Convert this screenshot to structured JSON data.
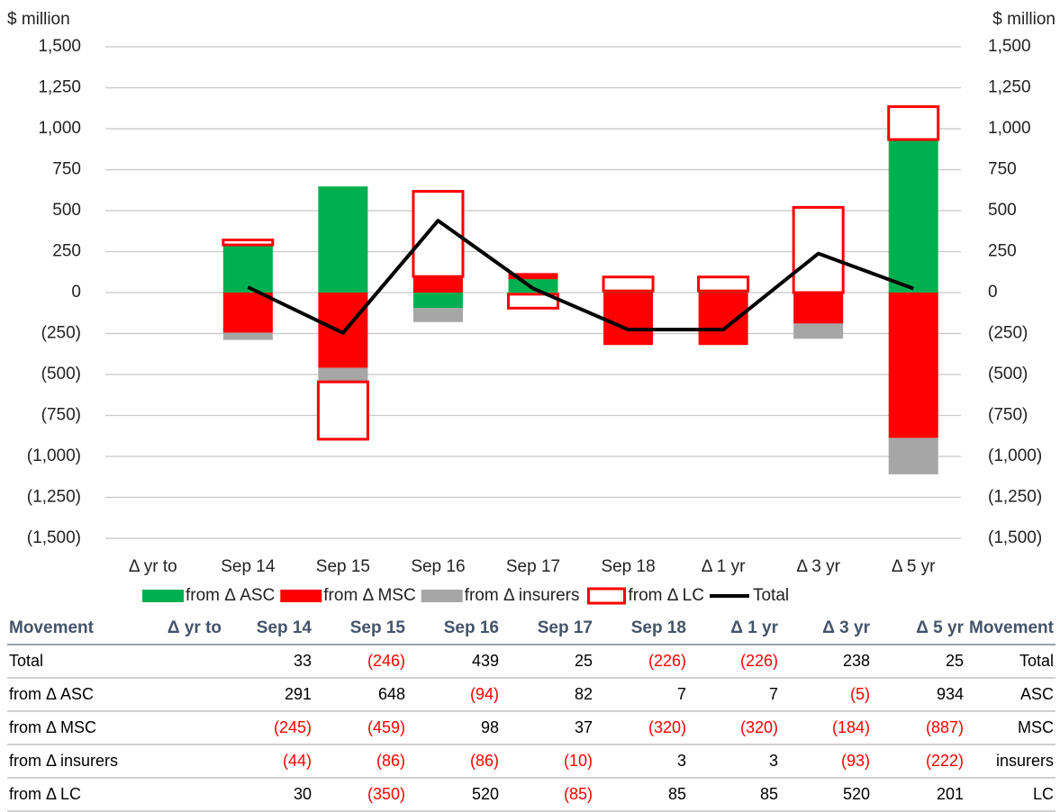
{
  "chart_data": {
    "type": "bar",
    "y_label": "$ million",
    "categories": [
      "Δ yr to",
      "Sep 14",
      "Sep 15",
      "Sep 16",
      "Sep 17",
      "Sep 18",
      "Δ 1 yr",
      "Δ 3 yr",
      "Δ 5 yr"
    ],
    "series": [
      {
        "name": "from Δ ASC",
        "color": "#00b050",
        "style": "fill",
        "values": [
          null,
          291,
          648,
          -94,
          82,
          7,
          7,
          -5,
          934
        ]
      },
      {
        "name": "from Δ MSC",
        "color": "#ff0000",
        "style": "fill",
        "values": [
          null,
          -245,
          -459,
          98,
          37,
          -320,
          -320,
          -184,
          -887
        ]
      },
      {
        "name": "from Δ insurers",
        "color": "#a6a6a6",
        "style": "fill",
        "values": [
          null,
          -44,
          -86,
          -86,
          -10,
          3,
          3,
          -93,
          -222
        ]
      },
      {
        "name": "from Δ LC",
        "color": "#ff0000",
        "style": "outline",
        "values": [
          null,
          30,
          -350,
          520,
          -85,
          85,
          85,
          520,
          201
        ]
      },
      {
        "name": "Total",
        "color": "#000000",
        "style": "line",
        "values": [
          null,
          33,
          -246,
          439,
          25,
          -226,
          -226,
          238,
          25
        ]
      }
    ],
    "ylim": [
      -1500,
      1500
    ],
    "yticks": [
      {
        "value": -1500,
        "label": "(1,500)"
      },
      {
        "value": -1250,
        "label": "(1,250)"
      },
      {
        "value": -1000,
        "label": "(1,000)"
      },
      {
        "value": -750,
        "label": "(750)"
      },
      {
        "value": -500,
        "label": "(500)"
      },
      {
        "value": -250,
        "label": "(250)"
      },
      0,
      250,
      500,
      750,
      {
        "value": 1000,
        "label": "1,000"
      },
      {
        "value": 1250,
        "label": "1,250"
      },
      {
        "value": 1500,
        "label": "1,500"
      }
    ],
    "negative_tick_color": "#ff0000",
    "grid": true,
    "legend": "bottom"
  },
  "table": {
    "header": [
      "Movement",
      "Δ yr to",
      "Sep 14",
      "Sep 15",
      "Sep 16",
      "Sep 17",
      "Sep 18",
      "Δ 1 yr",
      "Δ 3 yr",
      "Δ 5 yr",
      "Movement"
    ],
    "rows": [
      [
        "Total",
        null,
        "33",
        "(246)",
        "439",
        "25",
        "(226)",
        "(226)",
        "238",
        "25",
        "Total"
      ],
      [
        "from Δ ASC",
        null,
        "291",
        "648",
        "(94)",
        "82",
        "7",
        "7",
        "(5)",
        "934",
        "ASC"
      ],
      [
        "from Δ MSC",
        null,
        "(245)",
        "(459)",
        "98",
        "37",
        "(320)",
        "(320)",
        "(184)",
        "(887)",
        "MSC"
      ],
      [
        "from Δ insurers",
        null,
        "(44)",
        "(86)",
        "(86)",
        "(10)",
        "3",
        "3",
        "(93)",
        "(222)",
        "insurers"
      ],
      [
        "from Δ LC",
        null,
        "30",
        "(350)",
        "520",
        "(85)",
        "85",
        "85",
        "520",
        "201",
        "LC"
      ]
    ]
  }
}
